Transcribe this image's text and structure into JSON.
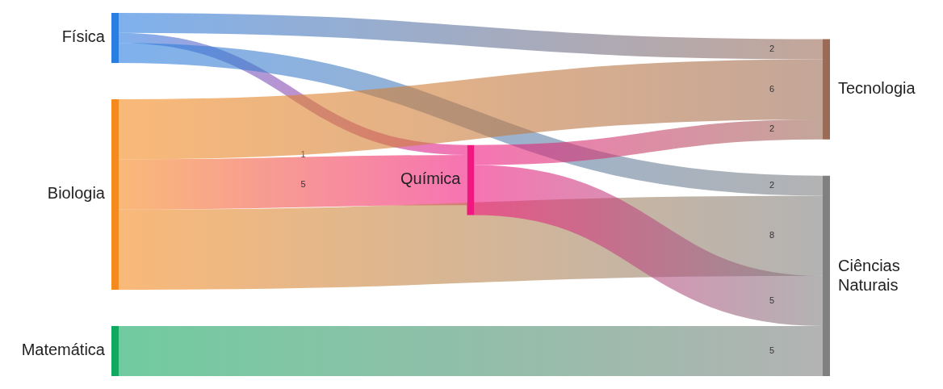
{
  "chart_data": {
    "type": "other",
    "categories": [
      "Física",
      "Biologia",
      "Química",
      "Matemática",
      "Tecnologia",
      "Ciências Naturais"
    ],
    "colors": [
      "#2a7de1",
      "#f58a1f",
      "#f0187f",
      "#12a860",
      "#9c6b55",
      "#808080"
    ],
    "series": [
      {
        "values": [
          null,
          null,
          1,
          null,
          2,
          2
        ]
      },
      {
        "values": [
          null,
          null,
          5,
          null,
          6,
          8
        ]
      },
      {
        "values": [
          null,
          null,
          null,
          null,
          2,
          5
        ]
      },
      {
        "values": [
          null,
          null,
          null,
          null,
          null,
          5
        ]
      }
    ],
    "data_labels": true
  }
}
